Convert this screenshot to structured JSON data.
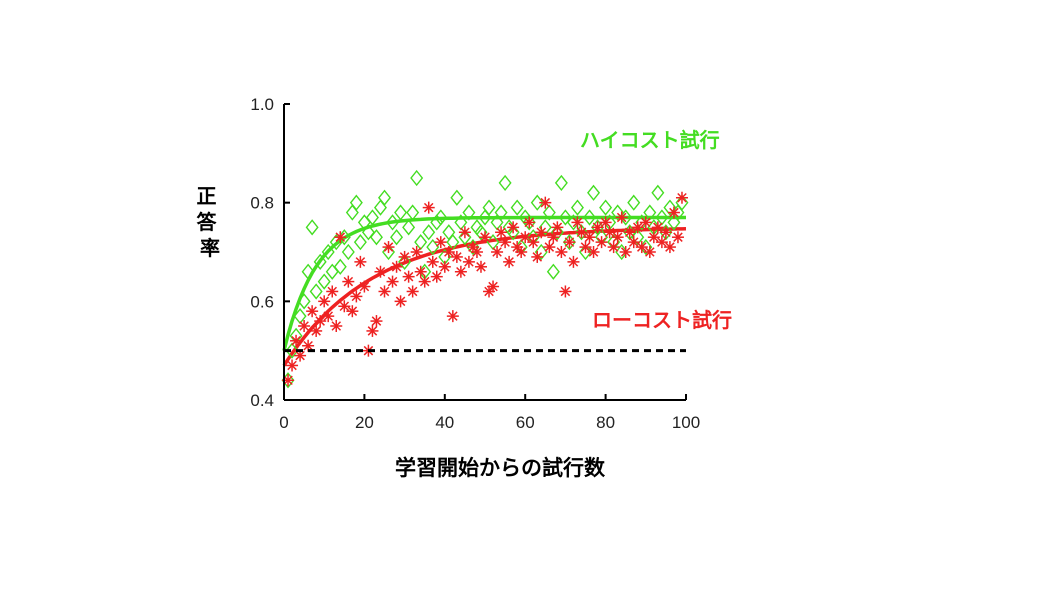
{
  "chart_data": {
    "type": "scatter",
    "xlabel": "学習開始からの試行数",
    "ylabel": "正答率",
    "xlim": [
      0,
      100
    ],
    "ylim": [
      0.4,
      1.0
    ],
    "x_ticks": [
      "0",
      "20",
      "40",
      "60",
      "80",
      "100"
    ],
    "y_ticks": [
      "0.4",
      "0.6",
      "0.8",
      "1.0"
    ],
    "chance_level": 0.5,
    "series": [
      {
        "name": "ハイコスト試行",
        "color": "#44dd22",
        "marker": "diamond",
        "fit": {
          "start": 0.5,
          "plateau": 0.77,
          "tau": 8
        },
        "points": [
          [
            1,
            0.44
          ],
          [
            2,
            0.5
          ],
          [
            3,
            0.53
          ],
          [
            4,
            0.57
          ],
          [
            5,
            0.6
          ],
          [
            6,
            0.66
          ],
          [
            7,
            0.75
          ],
          [
            8,
            0.62
          ],
          [
            9,
            0.68
          ],
          [
            10,
            0.64
          ],
          [
            11,
            0.7
          ],
          [
            12,
            0.66
          ],
          [
            13,
            0.72
          ],
          [
            14,
            0.67
          ],
          [
            15,
            0.73
          ],
          [
            16,
            0.7
          ],
          [
            17,
            0.78
          ],
          [
            18,
            0.8
          ],
          [
            19,
            0.72
          ],
          [
            20,
            0.76
          ],
          [
            21,
            0.74
          ],
          [
            22,
            0.77
          ],
          [
            23,
            0.73
          ],
          [
            24,
            0.79
          ],
          [
            25,
            0.81
          ],
          [
            26,
            0.7
          ],
          [
            27,
            0.76
          ],
          [
            28,
            0.73
          ],
          [
            29,
            0.78
          ],
          [
            30,
            0.68
          ],
          [
            31,
            0.75
          ],
          [
            32,
            0.78
          ],
          [
            33,
            0.85
          ],
          [
            34,
            0.72
          ],
          [
            35,
            0.66
          ],
          [
            36,
            0.74
          ],
          [
            37,
            0.71
          ],
          [
            38,
            0.76
          ],
          [
            39,
            0.77
          ],
          [
            40,
            0.69
          ],
          [
            41,
            0.74
          ],
          [
            42,
            0.72
          ],
          [
            43,
            0.81
          ],
          [
            44,
            0.76
          ],
          [
            45,
            0.73
          ],
          [
            46,
            0.78
          ],
          [
            47,
            0.71
          ],
          [
            48,
            0.75
          ],
          [
            49,
            0.74
          ],
          [
            50,
            0.77
          ],
          [
            51,
            0.79
          ],
          [
            52,
            0.72
          ],
          [
            53,
            0.76
          ],
          [
            54,
            0.78
          ],
          [
            55,
            0.84
          ],
          [
            56,
            0.75
          ],
          [
            57,
            0.74
          ],
          [
            58,
            0.79
          ],
          [
            59,
            0.71
          ],
          [
            60,
            0.77
          ],
          [
            61,
            0.76
          ],
          [
            62,
            0.73
          ],
          [
            63,
            0.8
          ],
          [
            64,
            0.7
          ],
          [
            65,
            0.75
          ],
          [
            66,
            0.78
          ],
          [
            67,
            0.66
          ],
          [
            68,
            0.74
          ],
          [
            69,
            0.84
          ],
          [
            70,
            0.77
          ],
          [
            71,
            0.72
          ],
          [
            72,
            0.76
          ],
          [
            73,
            0.79
          ],
          [
            74,
            0.74
          ],
          [
            75,
            0.7
          ],
          [
            76,
            0.77
          ],
          [
            77,
            0.82
          ],
          [
            78,
            0.75
          ],
          [
            79,
            0.73
          ],
          [
            80,
            0.79
          ],
          [
            81,
            0.76
          ],
          [
            82,
            0.72
          ],
          [
            83,
            0.78
          ],
          [
            84,
            0.7
          ],
          [
            85,
            0.77
          ],
          [
            86,
            0.74
          ],
          [
            87,
            0.8
          ],
          [
            88,
            0.73
          ],
          [
            89,
            0.76
          ],
          [
            90,
            0.71
          ],
          [
            91,
            0.78
          ],
          [
            92,
            0.75
          ],
          [
            93,
            0.82
          ],
          [
            94,
            0.77
          ],
          [
            95,
            0.74
          ],
          [
            96,
            0.79
          ],
          [
            97,
            0.76
          ],
          [
            98,
            0.78
          ],
          [
            99,
            0.8
          ]
        ]
      },
      {
        "name": "ローコスト試行",
        "color": "#ee2222",
        "marker": "asterisk",
        "fit": {
          "start": 0.47,
          "plateau": 0.75,
          "tau": 22
        },
        "points": [
          [
            1,
            0.44
          ],
          [
            2,
            0.47
          ],
          [
            3,
            0.52
          ],
          [
            4,
            0.49
          ],
          [
            5,
            0.55
          ],
          [
            6,
            0.51
          ],
          [
            7,
            0.58
          ],
          [
            8,
            0.54
          ],
          [
            9,
            0.56
          ],
          [
            10,
            0.6
          ],
          [
            11,
            0.57
          ],
          [
            12,
            0.62
          ],
          [
            13,
            0.55
          ],
          [
            14,
            0.73
          ],
          [
            15,
            0.59
          ],
          [
            16,
            0.64
          ],
          [
            17,
            0.58
          ],
          [
            18,
            0.61
          ],
          [
            19,
            0.68
          ],
          [
            20,
            0.63
          ],
          [
            21,
            0.5
          ],
          [
            22,
            0.54
          ],
          [
            23,
            0.56
          ],
          [
            24,
            0.66
          ],
          [
            25,
            0.62
          ],
          [
            26,
            0.71
          ],
          [
            27,
            0.64
          ],
          [
            28,
            0.67
          ],
          [
            29,
            0.6
          ],
          [
            30,
            0.69
          ],
          [
            31,
            0.65
          ],
          [
            32,
            0.62
          ],
          [
            33,
            0.7
          ],
          [
            34,
            0.66
          ],
          [
            35,
            0.64
          ],
          [
            36,
            0.79
          ],
          [
            37,
            0.68
          ],
          [
            38,
            0.65
          ],
          [
            39,
            0.72
          ],
          [
            40,
            0.67
          ],
          [
            41,
            0.7
          ],
          [
            42,
            0.57
          ],
          [
            43,
            0.69
          ],
          [
            44,
            0.66
          ],
          [
            45,
            0.74
          ],
          [
            46,
            0.68
          ],
          [
            47,
            0.71
          ],
          [
            48,
            0.7
          ],
          [
            49,
            0.67
          ],
          [
            50,
            0.73
          ],
          [
            51,
            0.62
          ],
          [
            52,
            0.63
          ],
          [
            53,
            0.7
          ],
          [
            54,
            0.74
          ],
          [
            55,
            0.72
          ],
          [
            56,
            0.68
          ],
          [
            57,
            0.75
          ],
          [
            58,
            0.71
          ],
          [
            59,
            0.7
          ],
          [
            60,
            0.73
          ],
          [
            61,
            0.76
          ],
          [
            62,
            0.72
          ],
          [
            63,
            0.69
          ],
          [
            64,
            0.74
          ],
          [
            65,
            0.8
          ],
          [
            66,
            0.71
          ],
          [
            67,
            0.73
          ],
          [
            68,
            0.75
          ],
          [
            69,
            0.7
          ],
          [
            70,
            0.62
          ],
          [
            71,
            0.72
          ],
          [
            72,
            0.68
          ],
          [
            73,
            0.76
          ],
          [
            74,
            0.74
          ],
          [
            75,
            0.71
          ],
          [
            76,
            0.73
          ],
          [
            77,
            0.7
          ],
          [
            78,
            0.75
          ],
          [
            79,
            0.72
          ],
          [
            80,
            0.76
          ],
          [
            81,
            0.74
          ],
          [
            82,
            0.71
          ],
          [
            83,
            0.73
          ],
          [
            84,
            0.77
          ],
          [
            85,
            0.7
          ],
          [
            86,
            0.74
          ],
          [
            87,
            0.72
          ],
          [
            88,
            0.75
          ],
          [
            89,
            0.71
          ],
          [
            90,
            0.76
          ],
          [
            91,
            0.7
          ],
          [
            92,
            0.73
          ],
          [
            93,
            0.75
          ],
          [
            94,
            0.72
          ],
          [
            95,
            0.74
          ],
          [
            96,
            0.71
          ],
          [
            97,
            0.78
          ],
          [
            98,
            0.73
          ],
          [
            99,
            0.81
          ]
        ]
      }
    ]
  }
}
